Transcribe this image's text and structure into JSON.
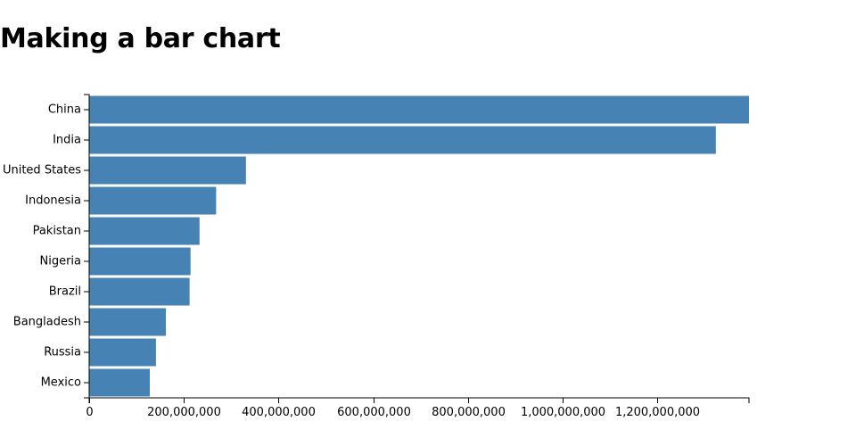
{
  "title": "Making a bar chart",
  "colors": {
    "bar": "#4682b4",
    "axis": "#000000"
  },
  "chart_data": {
    "type": "bar",
    "orientation": "horizontal",
    "title": "Making a bar chart",
    "xlabel": "",
    "ylabel": "",
    "categories": [
      "China",
      "India",
      "United States",
      "Indonesia",
      "Pakistan",
      "Nigeria",
      "Brazil",
      "Bangladesh",
      "Russia",
      "Mexico"
    ],
    "values": [
      1393000000,
      1323000000,
      331000000,
      268000000,
      233000000,
      214000000,
      212000000,
      162000000,
      141000000,
      128000000
    ],
    "xlim": [
      0,
      1393000000
    ],
    "x_ticks": [
      0,
      200000000,
      400000000,
      600000000,
      800000000,
      1000000000,
      1200000000
    ],
    "x_tick_labels": [
      "0",
      "200,000,000",
      "400,000,000",
      "600,000,000",
      "800,000,000",
      "1,000,000,000",
      "1,200,000,000"
    ],
    "grid": false,
    "legend": "none"
  }
}
